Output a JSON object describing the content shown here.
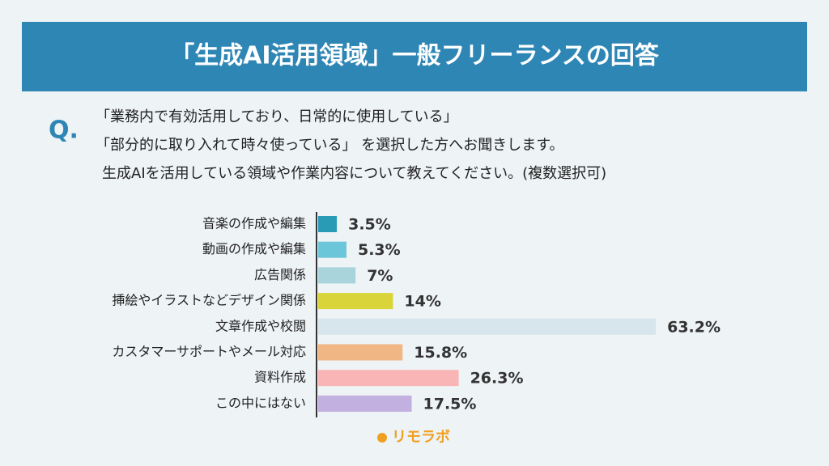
{
  "header": {
    "title": "「生成AI活用領域」一般フリーランスの回答"
  },
  "question": {
    "marker": "Q.",
    "lines": [
      "「業務内で有効活用しており、日常的に使用している」",
      "「部分的に取り入れて時々使っている」 を選択した方へお聞きします。",
      "生成AIを活用している領域や作業内容について教えてください。(複数選択可)"
    ]
  },
  "chart_data": {
    "type": "bar",
    "orientation": "horizontal",
    "categories": [
      "音楽の作成や編集",
      "動画の作成や編集",
      "広告関係",
      "挿絵やイラストなどデザイン関係",
      "文章作成や校閲",
      "カスタマーサポートやメール対応",
      "資料作成",
      "この中にはない"
    ],
    "values": [
      3.5,
      5.3,
      7,
      14,
      63.2,
      15.8,
      26.3,
      17.5
    ],
    "value_labels": [
      "3.5%",
      "5.3%",
      "7%",
      "14%",
      "63.2%",
      "15.8%",
      "26.3%",
      "17.5%"
    ],
    "colors": [
      "#2a9bb5",
      "#6cc6d9",
      "#a9d4dc",
      "#d9d43a",
      "#d6e6ec",
      "#f0b684",
      "#f9b5b5",
      "#c2b0e0"
    ]
  },
  "logo": {
    "text": "リモラボ"
  }
}
